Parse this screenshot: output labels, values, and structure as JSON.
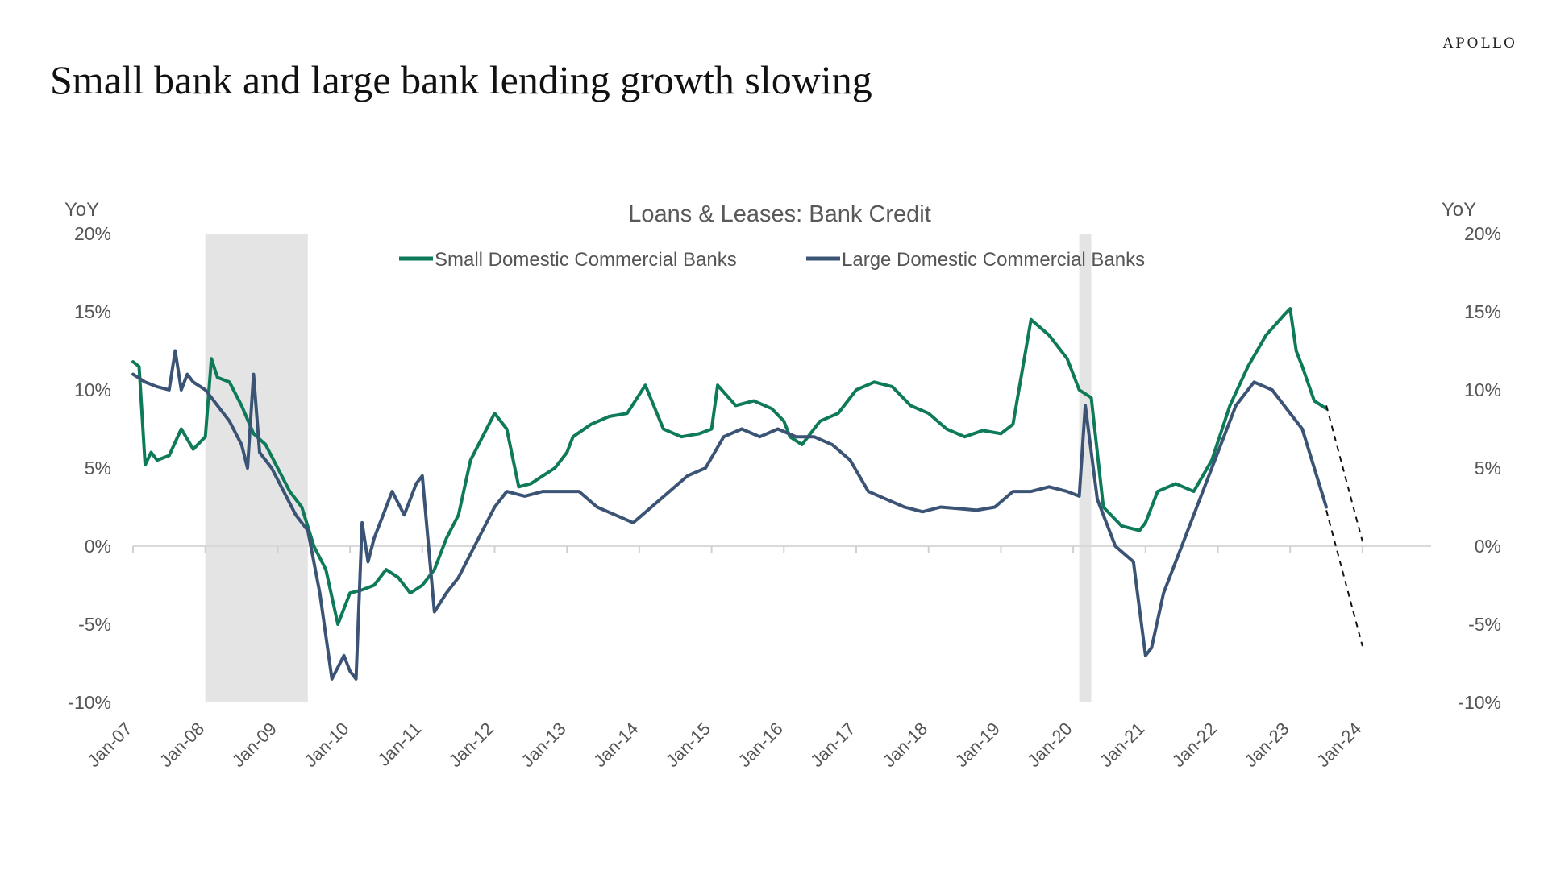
{
  "brand": "APOLLO",
  "headline": "Small bank and large bank lending growth slowing",
  "chart_data": {
    "type": "line",
    "title": "Loans & Leases: Bank Credit",
    "ylabel_left": "YoY",
    "ylabel_right": "YoY",
    "y_ticks": [
      "20%",
      "15%",
      "10%",
      "5%",
      "0%",
      "-5%",
      "-10%"
    ],
    "x_ticks": [
      "Jan-07",
      "Jan-08",
      "Jan-09",
      "Jan-10",
      "Jan-11",
      "Jan-12",
      "Jan-13",
      "Jan-14",
      "Jan-15",
      "Jan-16",
      "Jan-17",
      "Jan-18",
      "Jan-19",
      "Jan-20",
      "Jan-21",
      "Jan-22",
      "Jan-23",
      "Jan-24"
    ],
    "ylim": [
      -10,
      20
    ],
    "legend_position": "top-center",
    "grid": false,
    "recession_shading": [
      {
        "start": "2008-01",
        "end": "2009-06"
      },
      {
        "start": "2020-02",
        "end": "2020-04"
      }
    ],
    "series": [
      {
        "name": "Small Domestic Commercial Banks",
        "color": "#0e7a5a",
        "x": [
          "2007-01",
          "2007-02",
          "2007-03",
          "2007-04",
          "2007-05",
          "2007-07",
          "2007-09",
          "2007-11",
          "2008-01",
          "2008-02",
          "2008-03",
          "2008-05",
          "2008-07",
          "2008-09",
          "2008-11",
          "2009-01",
          "2009-03",
          "2009-05",
          "2009-07",
          "2009-09",
          "2009-11",
          "2010-01",
          "2010-03",
          "2010-05",
          "2010-07",
          "2010-09",
          "2010-11",
          "2011-01",
          "2011-03",
          "2011-05",
          "2011-07",
          "2011-09",
          "2011-11",
          "2012-01",
          "2012-03",
          "2012-05",
          "2012-07",
          "2012-09",
          "2012-11",
          "2013-01",
          "2013-02",
          "2013-05",
          "2013-08",
          "2013-11",
          "2014-02",
          "2014-05",
          "2014-08",
          "2014-11",
          "2015-01",
          "2015-02",
          "2015-05",
          "2015-08",
          "2015-11",
          "2016-01",
          "2016-02",
          "2016-04",
          "2016-07",
          "2016-10",
          "2017-01",
          "2017-04",
          "2017-07",
          "2017-10",
          "2018-01",
          "2018-04",
          "2018-07",
          "2018-10",
          "2019-01",
          "2019-03",
          "2019-06",
          "2019-09",
          "2019-12",
          "2020-02",
          "2020-04",
          "2020-06",
          "2020-09",
          "2020-12",
          "2021-01",
          "2021-03",
          "2021-06",
          "2021-09",
          "2021-12",
          "2022-03",
          "2022-06",
          "2022-09",
          "2022-12",
          "2023-01",
          "2023-02",
          "2023-03",
          "2023-05",
          "2023-07"
        ],
        "values": [
          11.8,
          11.5,
          5.2,
          6.0,
          5.5,
          5.8,
          7.5,
          6.2,
          7.0,
          12.0,
          10.8,
          10.5,
          9.0,
          7.2,
          6.5,
          5.0,
          3.5,
          2.5,
          0.0,
          -1.5,
          -5.0,
          -3.0,
          -2.8,
          -2.5,
          -1.5,
          -2.0,
          -3.0,
          -2.5,
          -1.5,
          0.5,
          2.0,
          5.5,
          7.0,
          8.5,
          7.5,
          3.8,
          4.0,
          4.5,
          5.0,
          6.0,
          7.0,
          7.8,
          8.3,
          8.5,
          10.3,
          7.5,
          7.0,
          7.2,
          7.5,
          10.3,
          9.0,
          9.3,
          8.8,
          8.0,
          7.0,
          6.5,
          8.0,
          8.5,
          10.0,
          10.5,
          10.2,
          9.0,
          8.5,
          7.5,
          7.0,
          7.4,
          7.2,
          7.8,
          14.5,
          13.5,
          12.0,
          10.0,
          9.5,
          2.5,
          1.3,
          1.0,
          1.5,
          3.5,
          4.0,
          3.5,
          5.5,
          9.0,
          11.5,
          13.5,
          14.8,
          15.2,
          12.5,
          11.5,
          9.3,
          8.8
        ],
        "projection": {
          "x": [
            "2023-07",
            "2024-01"
          ],
          "values": [
            9.0,
            0.3
          ]
        }
      },
      {
        "name": "Large Domestic Commercial Banks",
        "color": "#3b5475",
        "x": [
          "2007-01",
          "2007-03",
          "2007-05",
          "2007-07",
          "2007-08",
          "2007-09",
          "2007-10",
          "2007-11",
          "2008-01",
          "2008-03",
          "2008-05",
          "2008-07",
          "2008-08",
          "2008-09",
          "2008-10",
          "2008-12",
          "2009-02",
          "2009-04",
          "2009-06",
          "2009-08",
          "2009-10",
          "2009-12",
          "2010-01",
          "2010-02",
          "2010-03",
          "2010-04",
          "2010-05",
          "2010-06",
          "2010-08",
          "2010-10",
          "2010-12",
          "2011-01",
          "2011-03",
          "2011-05",
          "2011-07",
          "2011-09",
          "2011-11",
          "2012-01",
          "2012-03",
          "2012-06",
          "2012-09",
          "2012-12",
          "2013-03",
          "2013-06",
          "2013-09",
          "2013-12",
          "2014-03",
          "2014-06",
          "2014-09",
          "2014-12",
          "2015-03",
          "2015-06",
          "2015-09",
          "2015-12",
          "2016-03",
          "2016-06",
          "2016-09",
          "2016-12",
          "2017-03",
          "2017-06",
          "2017-09",
          "2017-12",
          "2018-03",
          "2018-06",
          "2018-09",
          "2018-12",
          "2019-03",
          "2019-06",
          "2019-09",
          "2019-12",
          "2020-02",
          "2020-03",
          "2020-05",
          "2020-08",
          "2020-11",
          "2021-01",
          "2021-02",
          "2021-04",
          "2021-07",
          "2021-10",
          "2022-01",
          "2022-04",
          "2022-07",
          "2022-10",
          "2023-01",
          "2023-03",
          "2023-05",
          "2023-07"
        ],
        "values": [
          11.0,
          10.5,
          10.2,
          10.0,
          12.5,
          10.0,
          11.0,
          10.5,
          10.0,
          9.0,
          8.0,
          6.5,
          5.0,
          11.0,
          6.0,
          5.0,
          3.5,
          2.0,
          1.0,
          -3.0,
          -8.5,
          -7.0,
          -8.0,
          -8.5,
          1.5,
          -1.0,
          0.5,
          1.5,
          3.5,
          2.0,
          4.0,
          4.5,
          -4.2,
          -3.0,
          -2.0,
          -0.5,
          1.0,
          2.5,
          3.5,
          3.2,
          3.5,
          3.5,
          3.5,
          2.5,
          2.0,
          1.5,
          2.5,
          3.5,
          4.5,
          5.0,
          7.0,
          7.5,
          7.0,
          7.5,
          7.0,
          7.0,
          6.5,
          5.5,
          3.5,
          3.0,
          2.5,
          2.2,
          2.5,
          2.4,
          2.3,
          2.5,
          3.5,
          3.5,
          3.8,
          3.5,
          3.2,
          9.0,
          3.0,
          0.0,
          -1.0,
          -7.0,
          -6.5,
          -3.0,
          0.0,
          3.0,
          6.0,
          9.0,
          10.5,
          10.0,
          8.5,
          7.5,
          5.0,
          2.5
        ],
        "projection": {
          "x": [
            "2023-07",
            "2024-01"
          ],
          "values": [
            2.3,
            -6.4
          ]
        }
      }
    ]
  }
}
